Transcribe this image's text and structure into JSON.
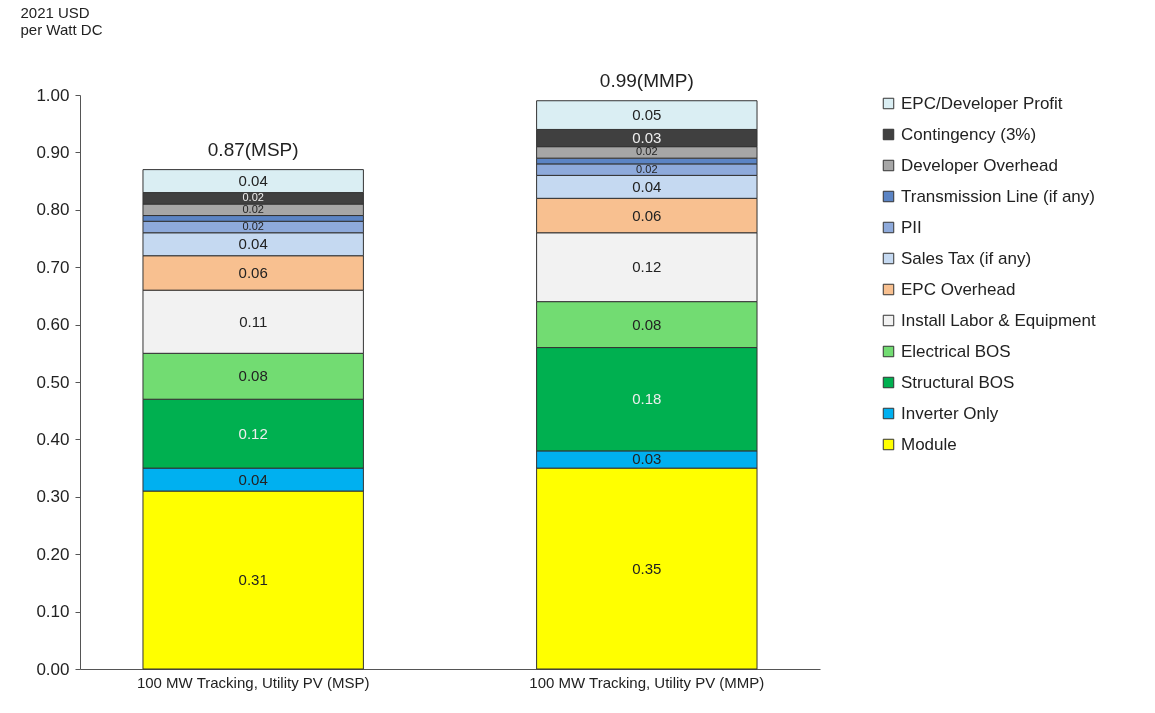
{
  "chart_data": {
    "type": "bar",
    "stacked": true,
    "ylabel": "2021 USD\nper Watt DC",
    "categories": [
      "100 MW Tracking, Utility PV (MSP)",
      "100 MW Tracking, Utility PV (MMP)"
    ],
    "ylim": [
      0,
      1
    ],
    "yticks": [
      {
        "value": 0,
        "label": "0.00"
      },
      {
        "value": 0.1,
        "label": "0.10"
      },
      {
        "value": 0.2,
        "label": "0.20"
      },
      {
        "value": 0.3,
        "label": "0.30"
      },
      {
        "value": 0.4,
        "label": "0.40"
      },
      {
        "value": 0.5,
        "label": "0.50"
      },
      {
        "value": 0.6,
        "label": "0.60"
      },
      {
        "value": 0.7,
        "label": "0.70"
      },
      {
        "value": 0.8,
        "label": "0.80"
      },
      {
        "value": 0.9,
        "label": "0.90"
      },
      {
        "value": 1,
        "label": "1.00"
      }
    ],
    "grid": false,
    "legend": "right",
    "totals": [
      "0.87(MSP)",
      "0.99(MMP)"
    ],
    "series": [
      {
        "name": "Module",
        "color": "#ffff00",
        "values": [
          0.31,
          0.35
        ],
        "value_labels": [
          "0.31",
          "0.35"
        ]
      },
      {
        "name": "Inverter Only",
        "color": "#00b0f0",
        "values": [
          0.04,
          0.03
        ],
        "value_labels": [
          "0.04",
          "0.03"
        ]
      },
      {
        "name": "Structural BOS",
        "color": "#00b050",
        "values": [
          0.12,
          0.18
        ],
        "value_labels": [
          "0.12",
          "0.18"
        ]
      },
      {
        "name": "Electrical BOS",
        "color": "#72dc72",
        "values": [
          0.08,
          0.08
        ],
        "value_labels": [
          "0.08",
          "0.08"
        ]
      },
      {
        "name": "Install Labor & Equipment",
        "color": "#f2f2f2",
        "values": [
          0.11,
          0.12
        ],
        "value_labels": [
          "0.11",
          "0.12"
        ]
      },
      {
        "name": "EPC Overhead",
        "color": "#f8c090",
        "values": [
          0.06,
          0.06
        ],
        "value_labels": [
          "0.06",
          "0.06"
        ]
      },
      {
        "name": "Sales Tax (if any)",
        "color": "#c5d9f1",
        "values": [
          0.04,
          0.04
        ],
        "value_labels": [
          "0.04",
          "0.04"
        ]
      },
      {
        "name": "PII",
        "color": "#8eaadb",
        "values": [
          0.02,
          0.02
        ],
        "value_labels": [
          "0.02",
          "0.02"
        ]
      },
      {
        "name": "Transmission Line (if any)",
        "color": "#5b84c4",
        "values": [
          0.01,
          0.01
        ],
        "value_labels": [
          null,
          null
        ]
      },
      {
        "name": "Developer Overhead",
        "color": "#a6a6a6",
        "values": [
          0.02,
          0.02
        ],
        "value_labels": [
          "0.02",
          "0.02"
        ]
      },
      {
        "name": "Contingency (3%)",
        "color": "#404040",
        "values": [
          0.02,
          0.03
        ],
        "value_labels": [
          "0.02",
          "0.03"
        ]
      },
      {
        "name": "EPC/Developer Profit",
        "color": "#daeef3",
        "values": [
          0.04,
          0.05
        ],
        "value_labels": [
          "0.04",
          "0.05"
        ]
      }
    ]
  }
}
